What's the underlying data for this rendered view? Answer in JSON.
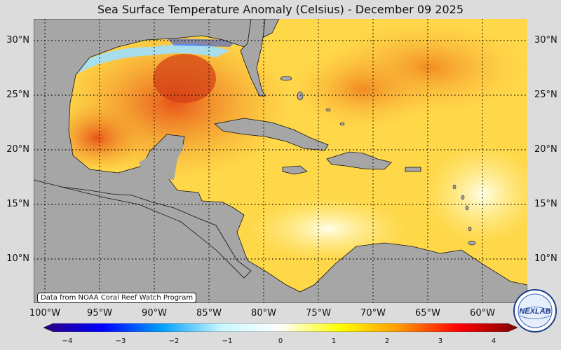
{
  "title": "Sea Surface Temperature Anomaly (Celsius) - December 09 2025",
  "credit": "Data from NOAA Coral Reef Watch Program",
  "lat_labels": [
    "30°N",
    "25°N",
    "20°N",
    "15°N",
    "10°N"
  ],
  "lon_labels": [
    "100°W",
    "95°W",
    "90°W",
    "85°W",
    "80°W",
    "75°W",
    "70°W",
    "65°W",
    "60°W"
  ],
  "colorbar": {
    "ticks": [
      "−4",
      "−3",
      "−2",
      "−1",
      "0",
      "1",
      "2",
      "3",
      "4"
    ],
    "colors": [
      "#2a0080",
      "#0000ff",
      "#00a0ff",
      "#c8f8ff",
      "#ffffff",
      "#ffff00",
      "#ff9a00",
      "#ff0000",
      "#800000"
    ]
  },
  "logo": {
    "text": "NEXLAB"
  }
}
